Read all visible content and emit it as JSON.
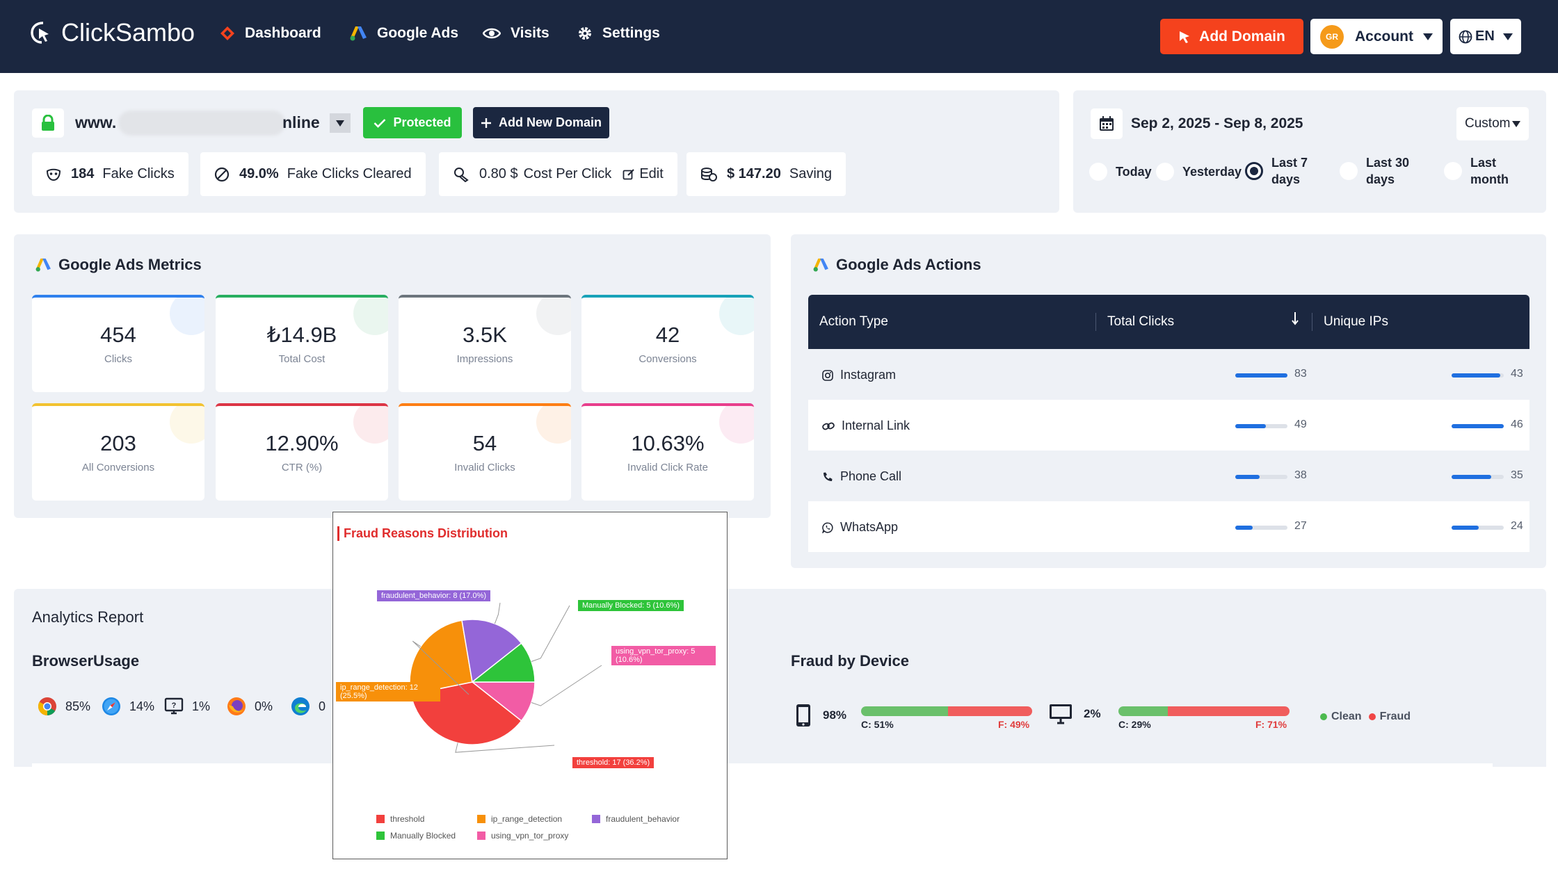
{
  "app": {
    "name": "ClickSambo"
  },
  "nav": {
    "items": [
      {
        "label": "Dashboard",
        "icon": "diamond-icon"
      },
      {
        "label": "Google Ads",
        "icon": "google-ads-icon"
      },
      {
        "label": "Visits",
        "icon": "eye-icon"
      },
      {
        "label": "Settings",
        "icon": "gear-icon"
      }
    ],
    "add_domain_label": "Add Domain",
    "account_label": "Account",
    "avatar_initials": "GR",
    "language": "EN"
  },
  "domain": {
    "prefix": "www.",
    "suffix": "nline",
    "protected_label": "Protected",
    "add_new_label": "Add New Domain"
  },
  "stats": {
    "fake_clicks_value": "184",
    "fake_clicks_label": "Fake Clicks",
    "cleared_value": "49.0%",
    "cleared_label": "Fake Clicks Cleared",
    "cpc_value": "0.80 $",
    "cpc_label": "Cost Per Click",
    "edit_label": "Edit",
    "saving_value": "$ 147.20",
    "saving_label": "Saving"
  },
  "date_filter": {
    "range": "Sep 2, 2025 - Sep 8, 2025",
    "mode": "Custom",
    "options": [
      {
        "label": "Today",
        "selected": false
      },
      {
        "label": "Yesterday",
        "selected": false
      },
      {
        "label": "Last 7 days",
        "selected": true
      },
      {
        "label": "Last 30 days",
        "selected": false
      },
      {
        "label": "Last month",
        "selected": false
      }
    ]
  },
  "metrics": {
    "title": "Google Ads Metrics",
    "cards": [
      {
        "value": "454",
        "label": "Clicks",
        "color": "#2f80ed"
      },
      {
        "value": "₺14.9B",
        "label": "Total Cost",
        "color": "#27ae60"
      },
      {
        "value": "3.5K",
        "label": "Impressions",
        "color": "#6c757d"
      },
      {
        "value": "42",
        "label": "Conversions",
        "color": "#17a2b8"
      },
      {
        "value": "203",
        "label": "All Conversions",
        "color": "#f2c230"
      },
      {
        "value": "12.90%",
        "label": "CTR (%)",
        "color": "#dc3545"
      },
      {
        "value": "54",
        "label": "Invalid Clicks",
        "color": "#fd7e14"
      },
      {
        "value": "10.63%",
        "label": "Invalid Click Rate",
        "color": "#e83e8c"
      }
    ]
  },
  "actions": {
    "title": "Google Ads Actions",
    "headers": {
      "type": "Action Type",
      "clicks": "Total Clicks",
      "ips": "Unique IPs"
    },
    "rows": [
      {
        "name": "Instagram",
        "icon": "instagram-icon",
        "clicks": "83",
        "clicks_frac": 1.0,
        "ips": "43",
        "ips_frac": 0.93
      },
      {
        "name": "Internal Link",
        "icon": "link-icon",
        "clicks": "49",
        "clicks_frac": 0.59,
        "ips": "46",
        "ips_frac": 1.0
      },
      {
        "name": "Phone Call",
        "icon": "phone-icon",
        "clicks": "38",
        "clicks_frac": 0.46,
        "ips": "35",
        "ips_frac": 0.76
      },
      {
        "name": "WhatsApp",
        "icon": "whatsapp-icon",
        "clicks": "27",
        "clicks_frac": 0.33,
        "ips": "24",
        "ips_frac": 0.52
      }
    ]
  },
  "analytics": {
    "title": "Analytics Report",
    "browser_title": "BrowserUsage",
    "browsers": [
      {
        "icon": "chrome-icon",
        "value": "85%"
      },
      {
        "icon": "safari-icon",
        "value": "14%"
      },
      {
        "icon": "desktop-browser-icon",
        "value": "1%"
      },
      {
        "icon": "firefox-icon",
        "value": "0%"
      },
      {
        "icon": "edge-icon",
        "value": "0"
      }
    ],
    "device_title": "Fraud by Device",
    "devices": [
      {
        "icon": "mobile-icon",
        "share": "98%",
        "clean": "C: 51%",
        "fraud": "F: 49%",
        "clean_frac": 0.51
      },
      {
        "icon": "desktop-icon",
        "share": "2%",
        "clean": "C: 29%",
        "fraud": "F: 71%",
        "clean_frac": 0.29
      }
    ],
    "legend_clean": "Clean",
    "legend_fraud": "Fraud",
    "colors": {
      "clean": "#6ac06b",
      "fraud": "#f05d5d"
    }
  },
  "fraud_popup": {
    "title": "Fraud Reasons Distribution",
    "chart_data": {
      "type": "pie",
      "title": "Fraud Reasons Distribution",
      "slices": [
        {
          "name": "threshold",
          "value": 17,
          "percent": 36.2,
          "label": "threshold: 17 (36.2%)",
          "color": "#f2403d"
        },
        {
          "name": "ip_range_detection",
          "value": 12,
          "percent": 25.5,
          "label": "ip_range_detection: 12 (25.5%)",
          "color": "#f7900a"
        },
        {
          "name": "fraudulent_behavior",
          "value": 8,
          "percent": 17.0,
          "label": "fraudulent_behavior: 8 (17.0%)",
          "color": "#9466d8"
        },
        {
          "name": "Manually Blocked",
          "value": 5,
          "percent": 10.6,
          "label": "Manually Blocked: 5 (10.6%)",
          "color": "#2ec43a"
        },
        {
          "name": "using_vpn_tor_proxy",
          "value": 5,
          "percent": 10.6,
          "label": "using_vpn_tor_proxy: 5 (10.6%)",
          "color": "#f25ca5"
        }
      ],
      "legend_placement": "bottom"
    }
  }
}
